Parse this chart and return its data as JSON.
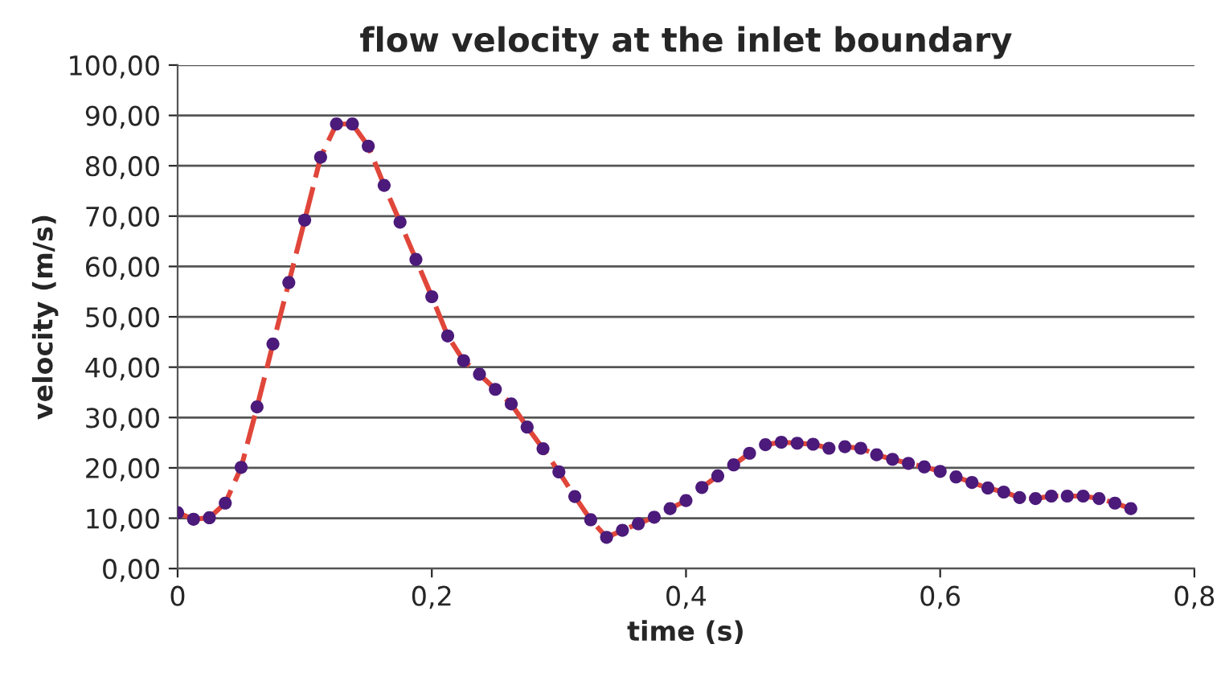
{
  "chart_data": {
    "type": "line",
    "title": "flow velocity at the inlet boundary",
    "xlabel": "time (s)",
    "ylabel": "velocity (m/s)",
    "x": [
      0,
      0.0125,
      0.025,
      0.0375,
      0.05,
      0.0625,
      0.075,
      0.0875,
      0.1,
      0.1125,
      0.125,
      0.1375,
      0.15,
      0.1625,
      0.175,
      0.1875,
      0.2,
      0.2125,
      0.225,
      0.2375,
      0.25,
      0.2625,
      0.275,
      0.2875,
      0.3,
      0.3125,
      0.325,
      0.3375,
      0.35,
      0.3625,
      0.375,
      0.3875,
      0.4,
      0.4125,
      0.425,
      0.4375,
      0.45,
      0.4625,
      0.475,
      0.4875,
      0.5,
      0.5125,
      0.525,
      0.5375,
      0.55,
      0.5625,
      0.575,
      0.5875,
      0.6,
      0.6125,
      0.625,
      0.6375,
      0.65,
      0.6625,
      0.675,
      0.6875,
      0.7,
      0.7125,
      0.725,
      0.7375,
      0.75
    ],
    "series": [
      {
        "color": "#e0463a",
        "line_style": "dashed",
        "marker": "circle",
        "colors": [
          "#4b1a7a",
          "#4b1a7a",
          "#4b1a7a",
          "#4b1a7a",
          "#4b1a7a",
          "#4b1a7a",
          "#4b1a7a",
          "#4b1a7a",
          "#4b1a7a",
          "#4b1a7a",
          "#4b1a7a",
          "#4b1a7a",
          "#4b1a7a",
          "#4b1a7a",
          "#4b1a7a",
          "#4b1a7a",
          "#4b1a7a",
          "#4b1a7a",
          "#4b1a7a",
          "#4b1a7a",
          "#4b1a7a",
          "#4b1a7a",
          "#4b1a7a",
          "#4b1a7a",
          "#4b1a7a",
          "#4b1a7a",
          "#4b1a7a",
          "#4b1a7a",
          "#4b1a7a",
          "#4b1a7a",
          "#4b1a7a",
          "#4b1a7a",
          "#4b1a7a",
          "#4b1a7a",
          "#4b1a7a",
          "#4b1a7a",
          "#4b1a7a",
          "#4b1a7a",
          "#4b1a7a",
          "#4b1a7a",
          "#4b1a7a",
          "#4b1a7a",
          "#4b1a7a",
          "#4b1a7a",
          "#4b1a7a",
          "#4b1a7a",
          "#4b1a7a",
          "#4b1a7a",
          "#4b1a7a",
          "#4b1a7a",
          "#4b1a7a",
          "#4b1a7a",
          "#4b1a7a",
          "#4b1a7a",
          "#4b1a7a",
          "#4b1a7a",
          "#4b1a7a",
          "#4b1a7a",
          "#4b1a7a",
          "#4b1a7a",
          "#4b1a7a"
        ],
        "values": [
          11.1,
          9.8,
          10.1,
          13.0,
          20.1,
          32.1,
          44.6,
          56.8,
          69.2,
          81.7,
          88.3,
          88.3,
          83.9,
          76.1,
          68.8,
          61.4,
          54.0,
          46.2,
          41.3,
          38.6,
          35.6,
          32.7,
          28.1,
          23.8,
          19.2,
          14.3,
          9.7,
          6.2,
          7.6,
          8.9,
          10.2,
          11.9,
          13.5,
          16.1,
          18.4,
          20.6,
          22.9,
          24.6,
          25.1,
          24.9,
          24.7,
          23.9,
          24.2,
          23.9,
          22.6,
          21.7,
          20.9,
          20.2,
          19.3,
          18.2,
          17.1,
          16.0,
          15.2,
          14.1,
          13.9,
          14.4,
          14.4,
          14.4,
          13.9,
          13.0,
          11.9
        ]
      }
    ],
    "xlim": [
      0,
      0.8
    ],
    "xticks": [
      0,
      {
        "value": 0.2,
        "label": "0,2"
      },
      {
        "value": 0.4,
        "label": "0,4"
      },
      {
        "value": 0.6,
        "label": "0,6"
      },
      {
        "value": 0.8,
        "label": "0,8"
      }
    ],
    "ylim": [
      0,
      100
    ],
    "yticks": [
      {
        "value": 0,
        "label": "0,00"
      },
      {
        "value": 10,
        "label": "10,00"
      },
      {
        "value": 20,
        "label": "20,00"
      },
      {
        "value": 30,
        "label": "30,00"
      },
      {
        "value": 40,
        "label": "40,00"
      },
      {
        "value": 50,
        "label": "50,00"
      },
      {
        "value": 60,
        "label": "60,00"
      },
      {
        "value": 70,
        "label": "70,00"
      },
      {
        "value": 80,
        "label": "80,00"
      },
      {
        "value": 90,
        "label": "90,00"
      },
      {
        "value": 100,
        "label": "100,00"
      }
    ],
    "grid": "y",
    "legend": false
  }
}
